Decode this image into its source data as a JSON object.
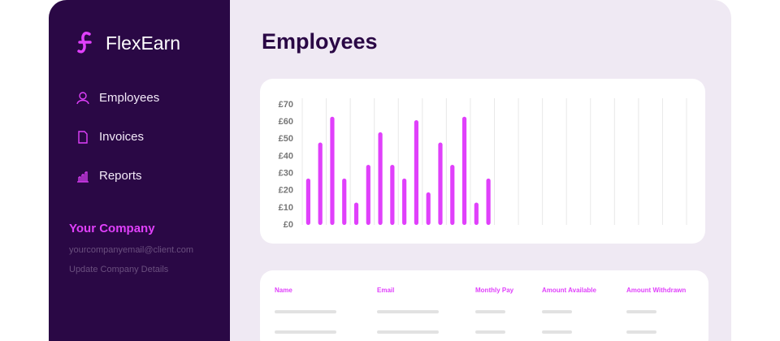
{
  "sidebar": {
    "brand": "FlexEarn",
    "nav": [
      "Employees",
      "Invoices",
      "Reports"
    ],
    "company": {
      "name": "Your Company",
      "email": "yourcompanyemail@client.com",
      "link": "Update Company Details"
    }
  },
  "header": {
    "title": "Employees"
  },
  "chart_data": {
    "type": "bar",
    "color": "#e040fb",
    "categories": [
      null,
      null,
      null,
      null,
      null,
      null,
      null,
      null,
      null,
      null,
      null,
      null,
      null,
      null,
      null,
      null,
      null,
      null,
      null,
      null,
      null,
      null,
      null,
      null,
      null,
      null,
      null,
      null,
      null,
      null,
      null,
      null
    ],
    "values": [
      27,
      48,
      63,
      27,
      13,
      35,
      54,
      35,
      27,
      61,
      19,
      48,
      35,
      63,
      13,
      27,
      null,
      null,
      null,
      null,
      null,
      null,
      null,
      null,
      null,
      null,
      null,
      null,
      null,
      null,
      null,
      null
    ],
    "ylim": [
      0,
      70
    ],
    "yticks": [
      {
        "value": 0,
        "label": "£0"
      },
      {
        "value": 10,
        "label": "£10"
      },
      {
        "value": 20,
        "label": "£20"
      },
      {
        "value": 30,
        "label": "£30"
      },
      {
        "value": 40,
        "label": "£40"
      },
      {
        "value": 50,
        "label": "£50"
      },
      {
        "value": 60,
        "label": "£60"
      },
      {
        "value": 70,
        "label": "£70"
      }
    ]
  },
  "table": {
    "headers": [
      "Name",
      "Email",
      "Monthly Pay",
      "Amount Available",
      "Amount Withdrawn"
    ]
  }
}
